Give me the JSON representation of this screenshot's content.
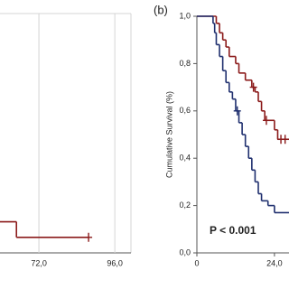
{
  "chart_data": [
    {
      "type": "step",
      "xlim": [
        59.7,
        101.1
      ],
      "ylim": [
        0,
        1
      ],
      "xticks": [
        {
          "value": 72,
          "label": "72,0"
        },
        {
          "value": 96,
          "label": "96,0"
        }
      ],
      "grid": true,
      "series": [
        {
          "color": "#8b1a1a",
          "x": [
            59.7,
            64.9,
            87.7
          ],
          "values": [
            0.13,
            0.065,
            0.065
          ]
        }
      ],
      "censored": [
        {
          "color": "#8b1a1a",
          "x": [
            87.7
          ],
          "values": [
            0.065
          ]
        }
      ]
    },
    {
      "type": "step",
      "panel_label": "(b)",
      "y_label": "Cumulative Survival (%)",
      "annotation": "P < 0.001",
      "xlim": [
        0,
        28.5
      ],
      "ylim": [
        0,
        1
      ],
      "xticks": [
        0,
        {
          "value": 24,
          "label": "24,0"
        }
      ],
      "yticks": [
        {
          "value": 0,
          "label": "0,0"
        },
        {
          "value": 0.2,
          "label": "0,2"
        },
        {
          "value": 0.4,
          "label": "0,4"
        },
        {
          "value": 0.6,
          "label": "0,6"
        },
        {
          "value": 0.8,
          "label": "0,8"
        },
        {
          "value": 1,
          "label": "1,0"
        }
      ],
      "grid": false,
      "series": [
        {
          "color": "#8b1a1a",
          "x": [
            0,
            6,
            7,
            8,
            9,
            10,
            12,
            13,
            15,
            17,
            18,
            19,
            20,
            21,
            24,
            25,
            28.5
          ],
          "values": [
            1.0,
            0.97,
            0.93,
            0.9,
            0.87,
            0.83,
            0.8,
            0.76,
            0.73,
            0.7,
            0.68,
            0.64,
            0.6,
            0.56,
            0.52,
            0.48,
            0.48
          ]
        },
        {
          "color": "#1f2f6e",
          "x": [
            0,
            5,
            5.5,
            6,
            7,
            8,
            9,
            10,
            11,
            12,
            13,
            14,
            15,
            16,
            17,
            18,
            19,
            20,
            22,
            24,
            25,
            28.5
          ],
          "values": [
            1.0,
            0.97,
            0.93,
            0.88,
            0.83,
            0.77,
            0.72,
            0.68,
            0.65,
            0.6,
            0.55,
            0.5,
            0.45,
            0.4,
            0.35,
            0.3,
            0.25,
            0.22,
            0.2,
            0.17,
            0.17,
            0.17
          ]
        }
      ],
      "censored": [
        {
          "color": "#8b1a1a",
          "x": [
            17.5,
            21.5,
            26,
            27.3
          ],
          "values": [
            0.7,
            0.56,
            0.48,
            0.48
          ]
        },
        {
          "color": "#1f2f6e",
          "x": [
            12.5
          ],
          "values": [
            0.6
          ]
        }
      ]
    }
  ]
}
